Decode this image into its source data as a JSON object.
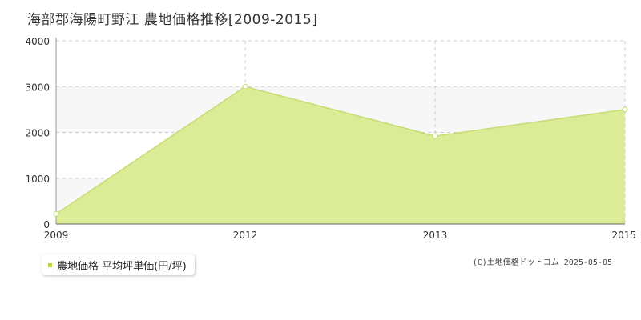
{
  "title": "海部郡海陽町野江 農地価格推移[2009-2015]",
  "legend": {
    "label": "農地価格 平均坪単価(円/坪)"
  },
  "copyright": "(C)土地価格ドットコム 2025-05-05",
  "colors": {
    "fill": "#dbeb96",
    "line": "#c5dd72",
    "point_fill": "#ffffff",
    "legend_swatch": "#b5d43c",
    "band": "#f7f7f7",
    "grid": "#cccccc"
  },
  "chart_data": {
    "type": "area",
    "title": "海部郡海陽町野江 農地価格推移[2009-2015]",
    "x": [
      "2009",
      "2012",
      "2013",
      "2015"
    ],
    "series": [
      {
        "name": "農地価格 平均坪単価(円/坪)",
        "values": [
          220,
          3000,
          1920,
          2500
        ]
      }
    ],
    "yticks": [
      "0",
      "1000",
      "2000",
      "3000",
      "4000"
    ],
    "ylim": [
      0,
      4000
    ],
    "grid": true,
    "legend_position": "bottom-left"
  }
}
